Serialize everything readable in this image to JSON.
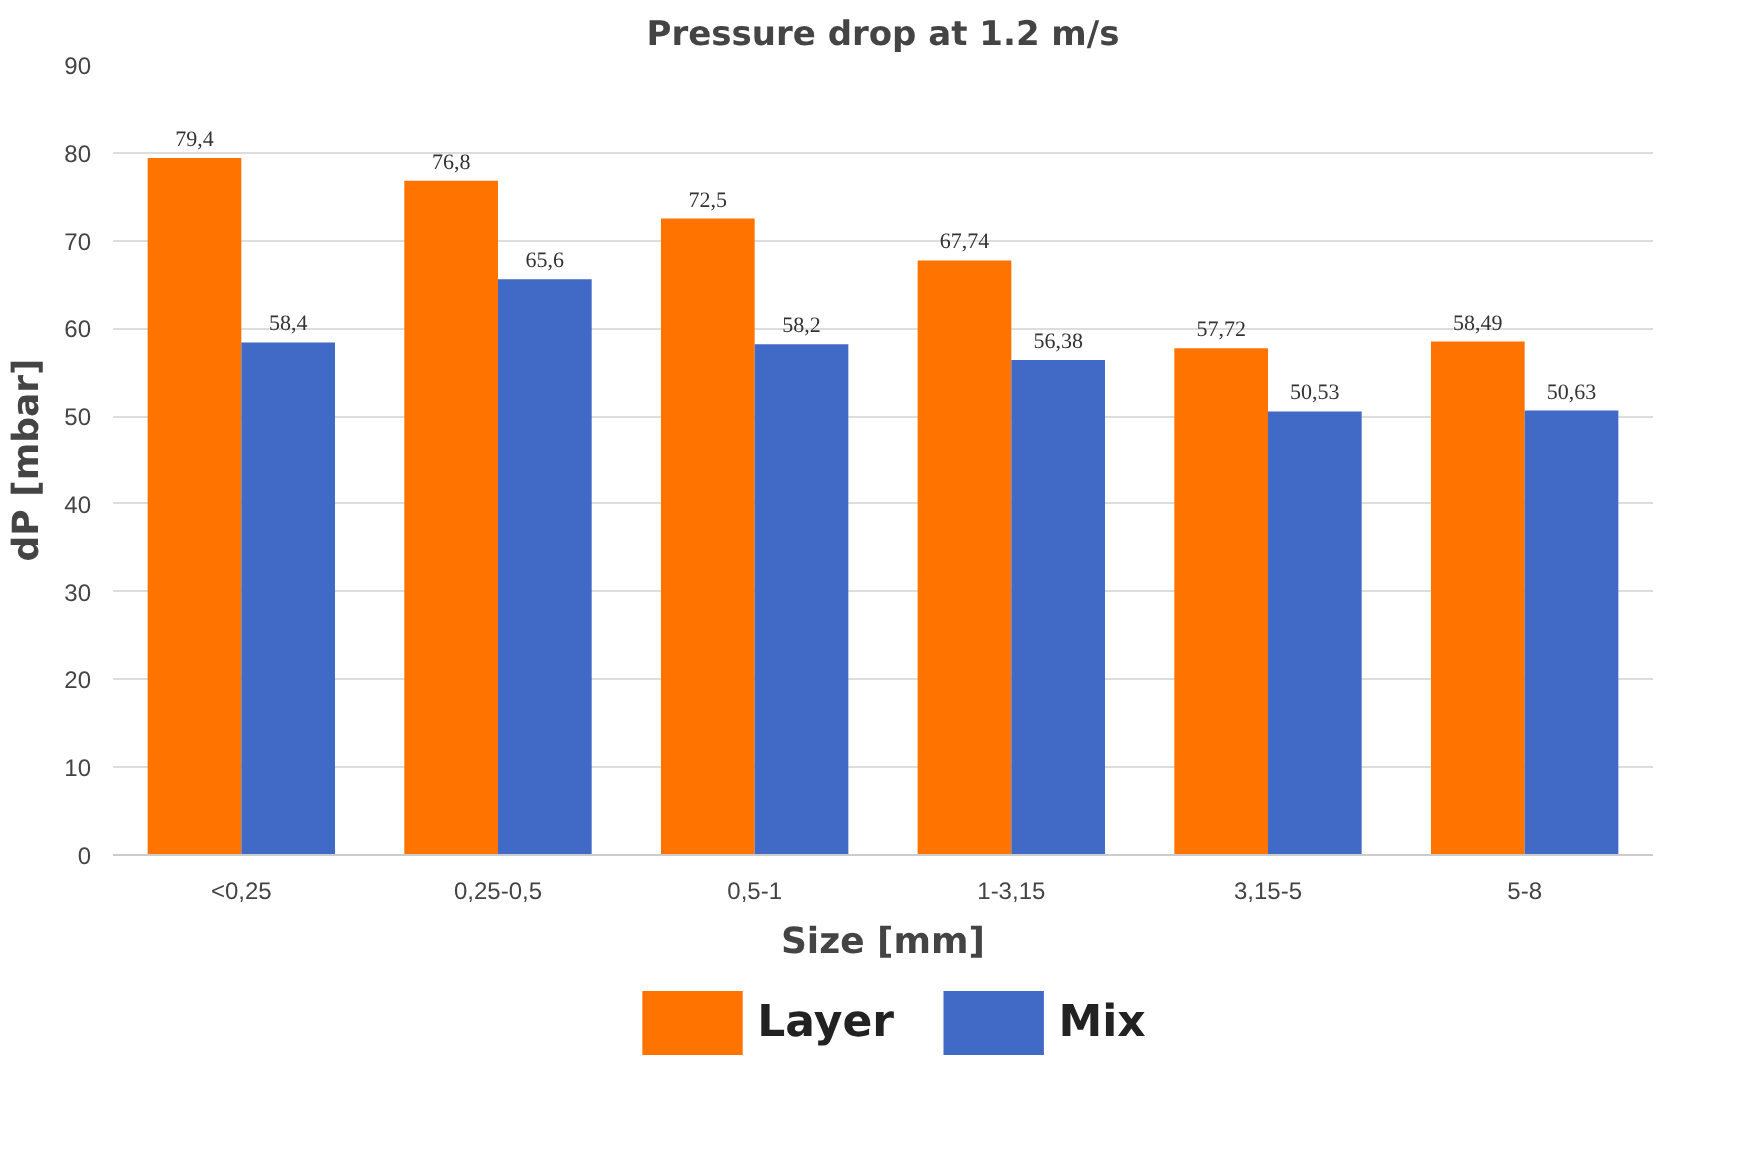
{
  "chart_data": {
    "type": "bar",
    "title": "Pressure drop at 1.2 m/s",
    "xlabel": "Size [mm]",
    "ylabel": "dP [mbar]",
    "categories": [
      "<0,25",
      "0,25-0,5",
      "0,5-1",
      "1-3,15",
      "3,15-5",
      "5-8"
    ],
    "series": [
      {
        "name": "Layer",
        "color": "#ff7300",
        "values": [
          79.4,
          76.8,
          72.5,
          67.74,
          57.72,
          58.49
        ],
        "value_labels": [
          "79,4",
          "76,8",
          "72,5",
          "67,74",
          "57,72",
          "58,49"
        ]
      },
      {
        "name": "Mix",
        "color": "#4169c6",
        "values": [
          58.4,
          65.6,
          58.2,
          56.38,
          50.53,
          50.63
        ],
        "value_labels": [
          "58,4",
          "65,6",
          "58,2",
          "56,38",
          "50,53",
          "50,63"
        ]
      }
    ],
    "ylim": [
      0,
      90
    ],
    "yticks": [
      0,
      10,
      20,
      30,
      40,
      50,
      60,
      70,
      80,
      90
    ],
    "grid": "y",
    "legend": "bottom"
  }
}
